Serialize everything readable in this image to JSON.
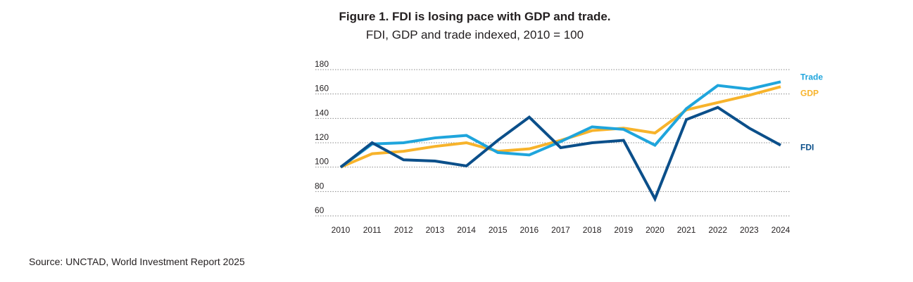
{
  "chart_data": {
    "type": "line",
    "title": "Figure 1. FDI is losing pace with GDP and trade.",
    "subtitle": "FDI, GDP and trade indexed, 2010 = 100",
    "x": [
      "2010",
      "2011",
      "2012",
      "2013",
      "2014",
      "2015",
      "2016",
      "2017",
      "2018",
      "2019",
      "2020",
      "2021",
      "2022",
      "2023",
      "2024"
    ],
    "yticks": [
      60,
      80,
      100,
      120,
      140,
      160,
      180
    ],
    "ylim": [
      60,
      180
    ],
    "grid": "horizontal dotted",
    "series": [
      {
        "name": "GDP",
        "color": "#f7b32b",
        "values": [
          100,
          111,
          113,
          117,
          120,
          113,
          115,
          122,
          130,
          132,
          128,
          147,
          153,
          159,
          166
        ]
      },
      {
        "name": "Trade",
        "color": "#1fa5dc",
        "values": [
          100,
          119,
          120,
          124,
          126,
          112,
          110,
          121,
          133,
          131,
          118,
          148,
          167,
          164,
          170
        ]
      },
      {
        "name": "FDI",
        "color": "#0b4f8a",
        "values": [
          100,
          120,
          106,
          105,
          101,
          122,
          141,
          116,
          120,
          122,
          74,
          139,
          149,
          132,
          118
        ]
      }
    ]
  },
  "source": "Source: UNCTAD, World Investment Report 2025"
}
